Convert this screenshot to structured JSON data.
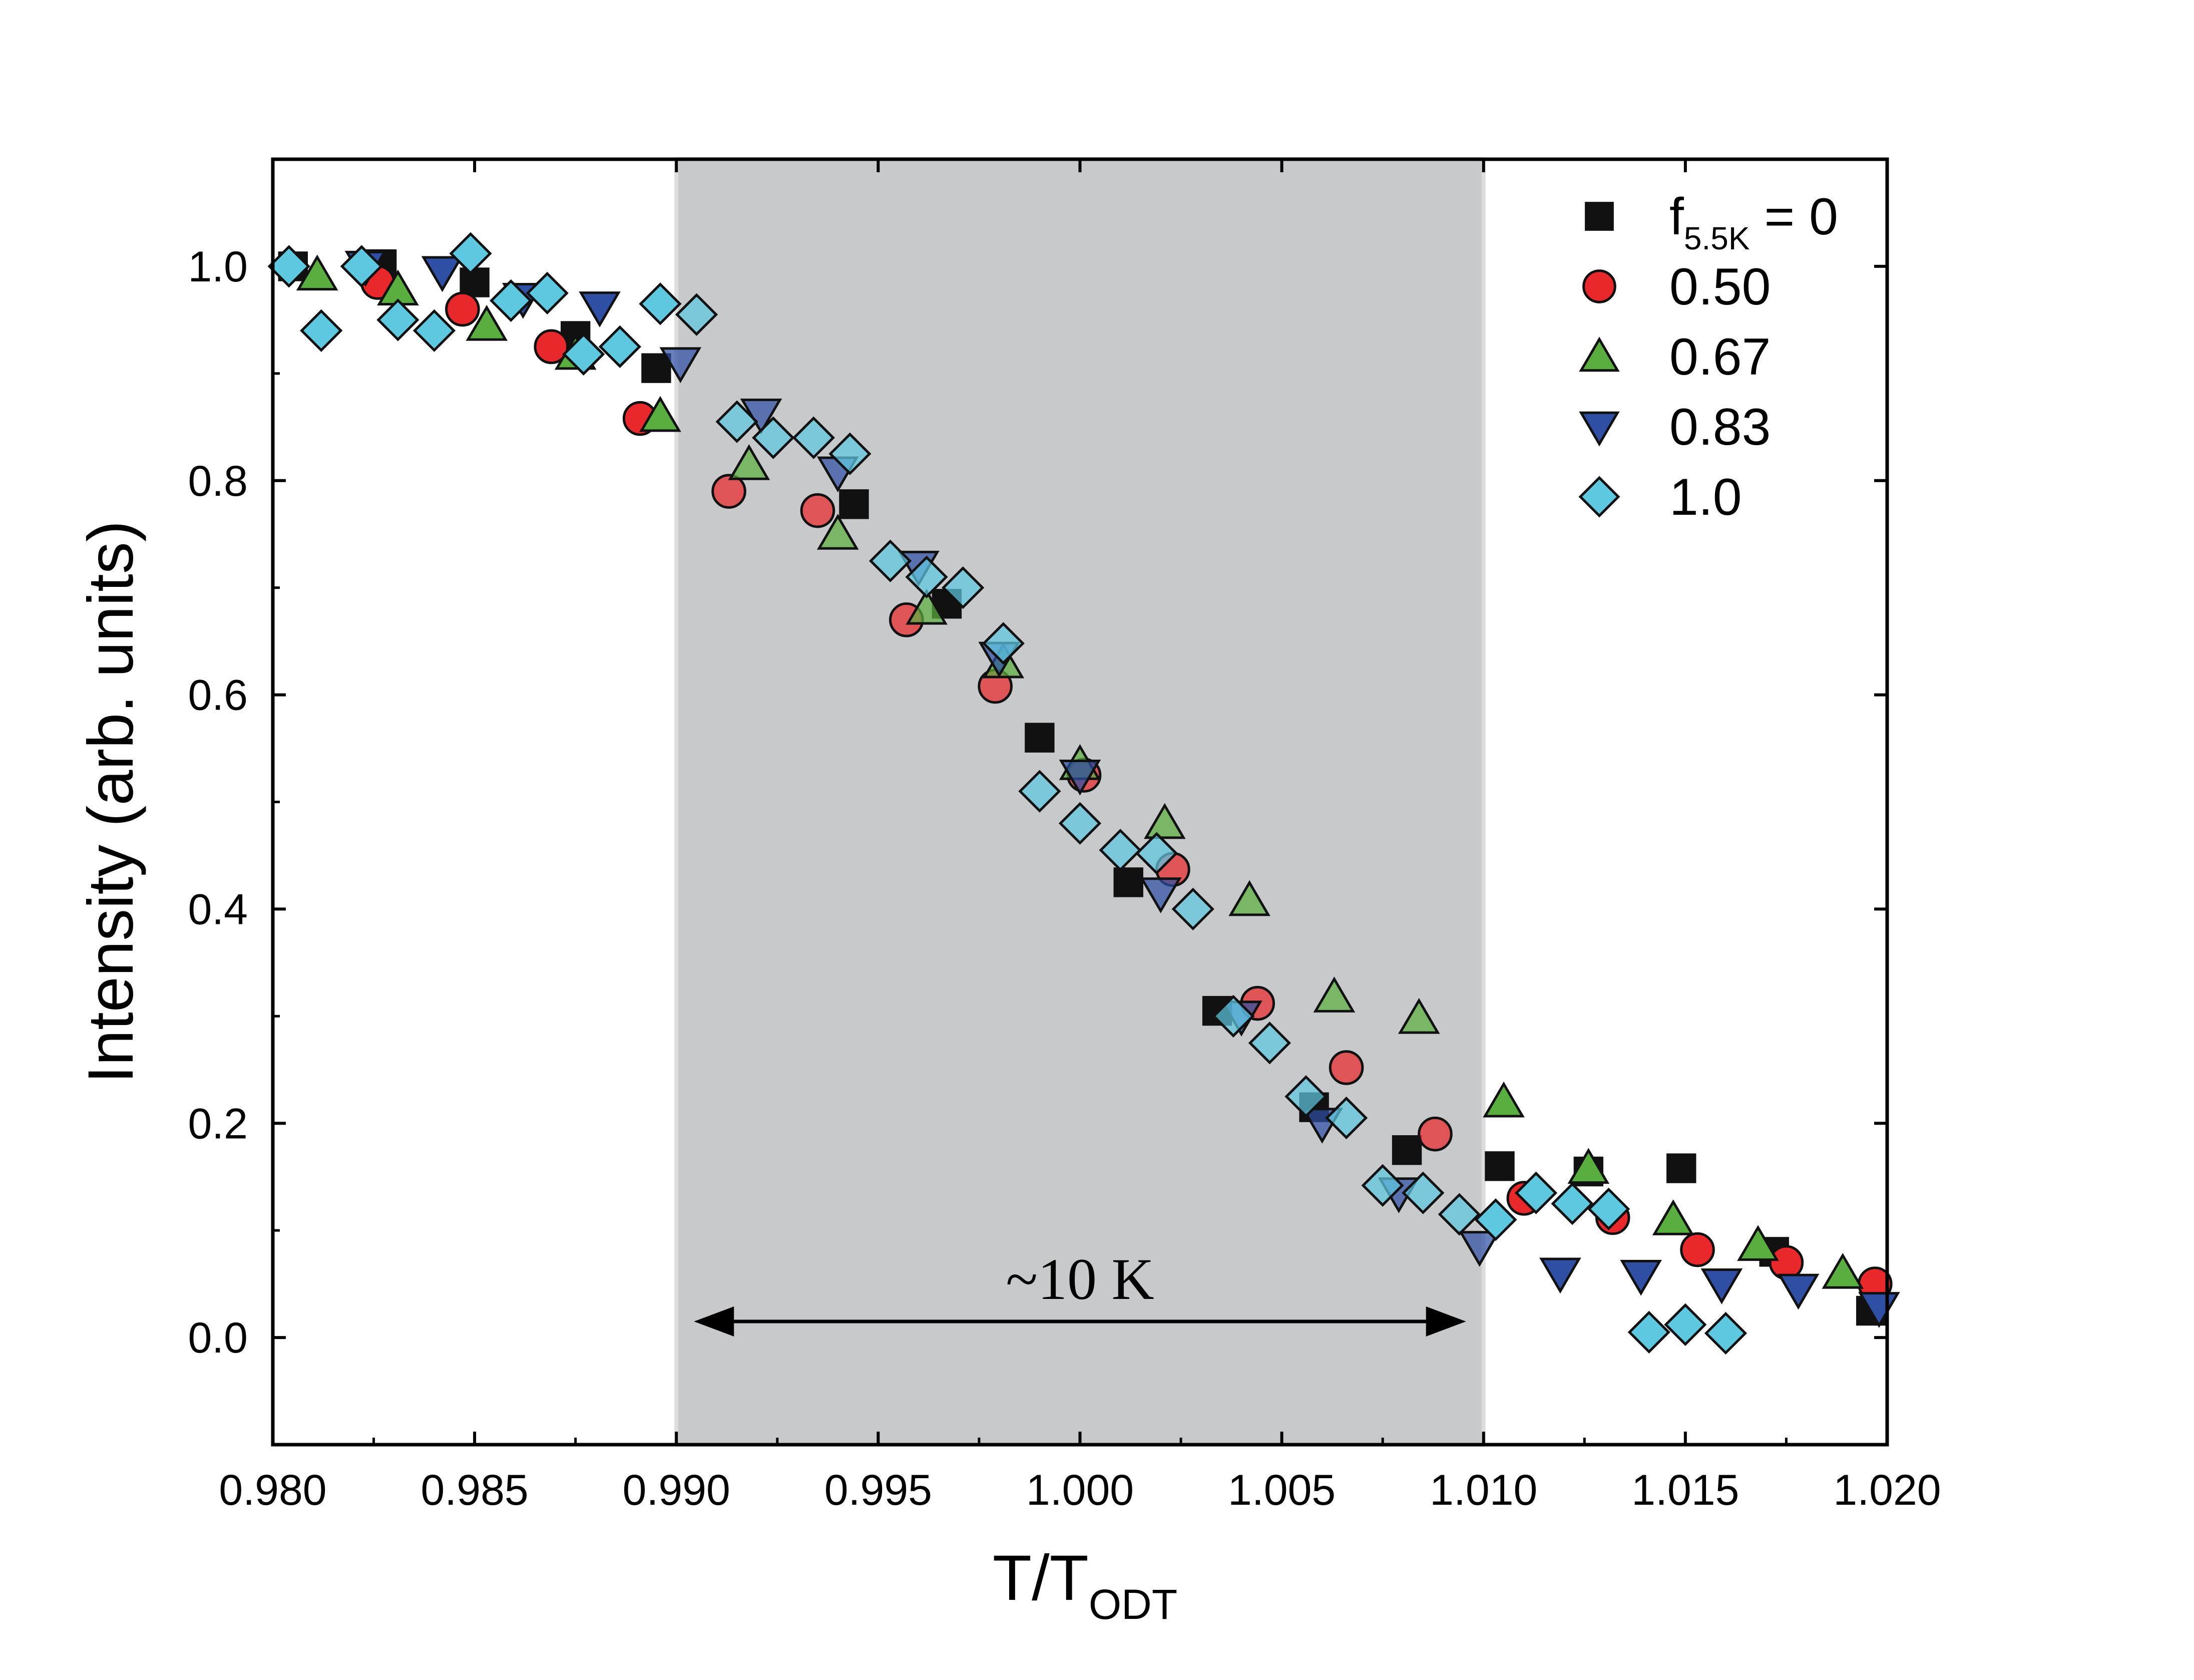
{
  "chart_data": {
    "type": "scatter",
    "title": "",
    "xlabel": "T/T",
    "xlabel_sub": "ODT",
    "ylabel": "Intensity (arb. units)",
    "xlim": [
      0.98,
      1.02
    ],
    "ylim": [
      -0.1,
      1.1
    ],
    "xticks": [
      "0.980",
      "0.985",
      "0.990",
      "0.995",
      "1.000",
      "1.005",
      "1.010",
      "1.015",
      "1.020"
    ],
    "yticks": [
      "0.0",
      "0.2",
      "0.4",
      "0.6",
      "0.8",
      "1.0"
    ],
    "grid": false,
    "legend_position": "top-right",
    "legend": {
      "first_prefix": "f",
      "first_sub": "5.5K",
      "first_suffix": " = 0"
    },
    "shaded_region": {
      "x": [
        0.99,
        1.01
      ],
      "color": "#c8c9cb"
    },
    "annotation": {
      "text": "~10 K",
      "x_range": [
        0.99,
        1.01
      ],
      "y": 0.015
    },
    "series": [
      {
        "name": "0",
        "marker": "square",
        "color": "#111111",
        "points": [
          [
            0.9805,
            1.0
          ],
          [
            0.9825,
            1.002
          ],
          [
            0.9827,
            1.002
          ],
          [
            0.985,
            0.985
          ],
          [
            0.9875,
            0.935
          ],
          [
            0.9895,
            0.905
          ],
          [
            0.9944,
            0.778
          ],
          [
            0.9967,
            0.685
          ],
          [
            0.999,
            0.56
          ],
          [
            1.0012,
            0.425
          ],
          [
            1.0034,
            0.305
          ],
          [
            1.0058,
            0.215
          ],
          [
            1.0081,
            0.175
          ],
          [
            1.0104,
            0.16
          ],
          [
            1.0126,
            0.155
          ],
          [
            1.0149,
            0.158
          ],
          [
            1.0172,
            0.08
          ],
          [
            1.0196,
            0.025
          ]
        ]
      },
      {
        "name": "0.50",
        "marker": "circle",
        "color": "#e8282a",
        "points": [
          [
            0.9826,
            0.985
          ],
          [
            0.9847,
            0.96
          ],
          [
            0.9869,
            0.925
          ],
          [
            0.9891,
            0.858
          ],
          [
            0.9913,
            0.79
          ],
          [
            0.9935,
            0.772
          ],
          [
            0.9957,
            0.67
          ],
          [
            0.9979,
            0.608
          ],
          [
            1.0001,
            0.525
          ],
          [
            1.0023,
            0.437
          ],
          [
            1.0044,
            0.312
          ],
          [
            1.0066,
            0.252
          ],
          [
            1.0088,
            0.19
          ],
          [
            1.011,
            0.13
          ],
          [
            1.0132,
            0.112
          ],
          [
            1.0153,
            0.082
          ],
          [
            1.0175,
            0.07
          ],
          [
            1.0197,
            0.05
          ]
        ]
      },
      {
        "name": "0.67",
        "marker": "triangle-up",
        "color": "#5aae3f",
        "points": [
          [
            0.9811,
            0.992
          ],
          [
            0.9831,
            0.978
          ],
          [
            0.9853,
            0.945
          ],
          [
            0.9875,
            0.918
          ],
          [
            0.9896,
            0.86
          ],
          [
            0.9918,
            0.815
          ],
          [
            0.994,
            0.75
          ],
          [
            0.9962,
            0.68
          ],
          [
            0.9981,
            0.63
          ],
          [
            1.0,
            0.535
          ],
          [
            1.0021,
            0.48
          ],
          [
            1.0042,
            0.408
          ],
          [
            1.0063,
            0.318
          ],
          [
            1.0084,
            0.298
          ],
          [
            1.0105,
            0.22
          ],
          [
            1.0126,
            0.158
          ],
          [
            1.0147,
            0.11
          ],
          [
            1.0168,
            0.086
          ],
          [
            1.0189,
            0.06
          ]
        ]
      },
      {
        "name": "0.83",
        "marker": "triangle-down",
        "color": "#2e4fa3",
        "points": [
          [
            0.9823,
            1.0
          ],
          [
            0.9842,
            0.995
          ],
          [
            0.9862,
            0.97
          ],
          [
            0.9881,
            0.962
          ],
          [
            0.9901,
            0.91
          ],
          [
            0.9921,
            0.862
          ],
          [
            0.994,
            0.808
          ],
          [
            0.996,
            0.72
          ],
          [
            0.998,
            0.635
          ],
          [
            1.0,
            0.525
          ],
          [
            1.002,
            0.415
          ],
          [
            1.004,
            0.3
          ],
          [
            1.006,
            0.2
          ],
          [
            1.0079,
            0.135
          ],
          [
            1.0099,
            0.085
          ],
          [
            1.0119,
            0.06
          ],
          [
            1.0139,
            0.058
          ],
          [
            1.0159,
            0.05
          ],
          [
            1.0178,
            0.045
          ],
          [
            1.0198,
            0.028
          ]
        ]
      },
      {
        "name": "1.0",
        "marker": "diamond",
        "color": "#5ec8e0",
        "points": [
          [
            0.9804,
            1.0
          ],
          [
            0.9812,
            0.94
          ],
          [
            0.9822,
            1.0
          ],
          [
            0.9831,
            0.95
          ],
          [
            0.984,
            0.94
          ],
          [
            0.9849,
            1.012
          ],
          [
            0.9859,
            0.968
          ],
          [
            0.9868,
            0.975
          ],
          [
            0.9877,
            0.918
          ],
          [
            0.9886,
            0.925
          ],
          [
            0.9896,
            0.965
          ],
          [
            0.9905,
            0.955
          ],
          [
            0.9915,
            0.855
          ],
          [
            0.9924,
            0.84
          ],
          [
            0.9934,
            0.84
          ],
          [
            0.9943,
            0.825
          ],
          [
            0.9953,
            0.725
          ],
          [
            0.9962,
            0.71
          ],
          [
            0.9971,
            0.7
          ],
          [
            0.9981,
            0.648
          ],
          [
            0.999,
            0.51
          ],
          [
            1.0,
            0.48
          ],
          [
            1.001,
            0.455
          ],
          [
            1.0019,
            0.452
          ],
          [
            1.0028,
            0.4
          ],
          [
            1.0038,
            0.3
          ],
          [
            1.0047,
            0.275
          ],
          [
            1.0056,
            0.225
          ],
          [
            1.0066,
            0.205
          ],
          [
            1.0075,
            0.142
          ],
          [
            1.0085,
            0.135
          ],
          [
            1.0094,
            0.115
          ],
          [
            1.0103,
            0.11
          ],
          [
            1.0113,
            0.135
          ],
          [
            1.0122,
            0.125
          ],
          [
            1.0131,
            0.12
          ],
          [
            1.0141,
            0.005
          ],
          [
            1.015,
            0.012
          ],
          [
            1.016,
            0.004
          ]
        ]
      }
    ]
  }
}
